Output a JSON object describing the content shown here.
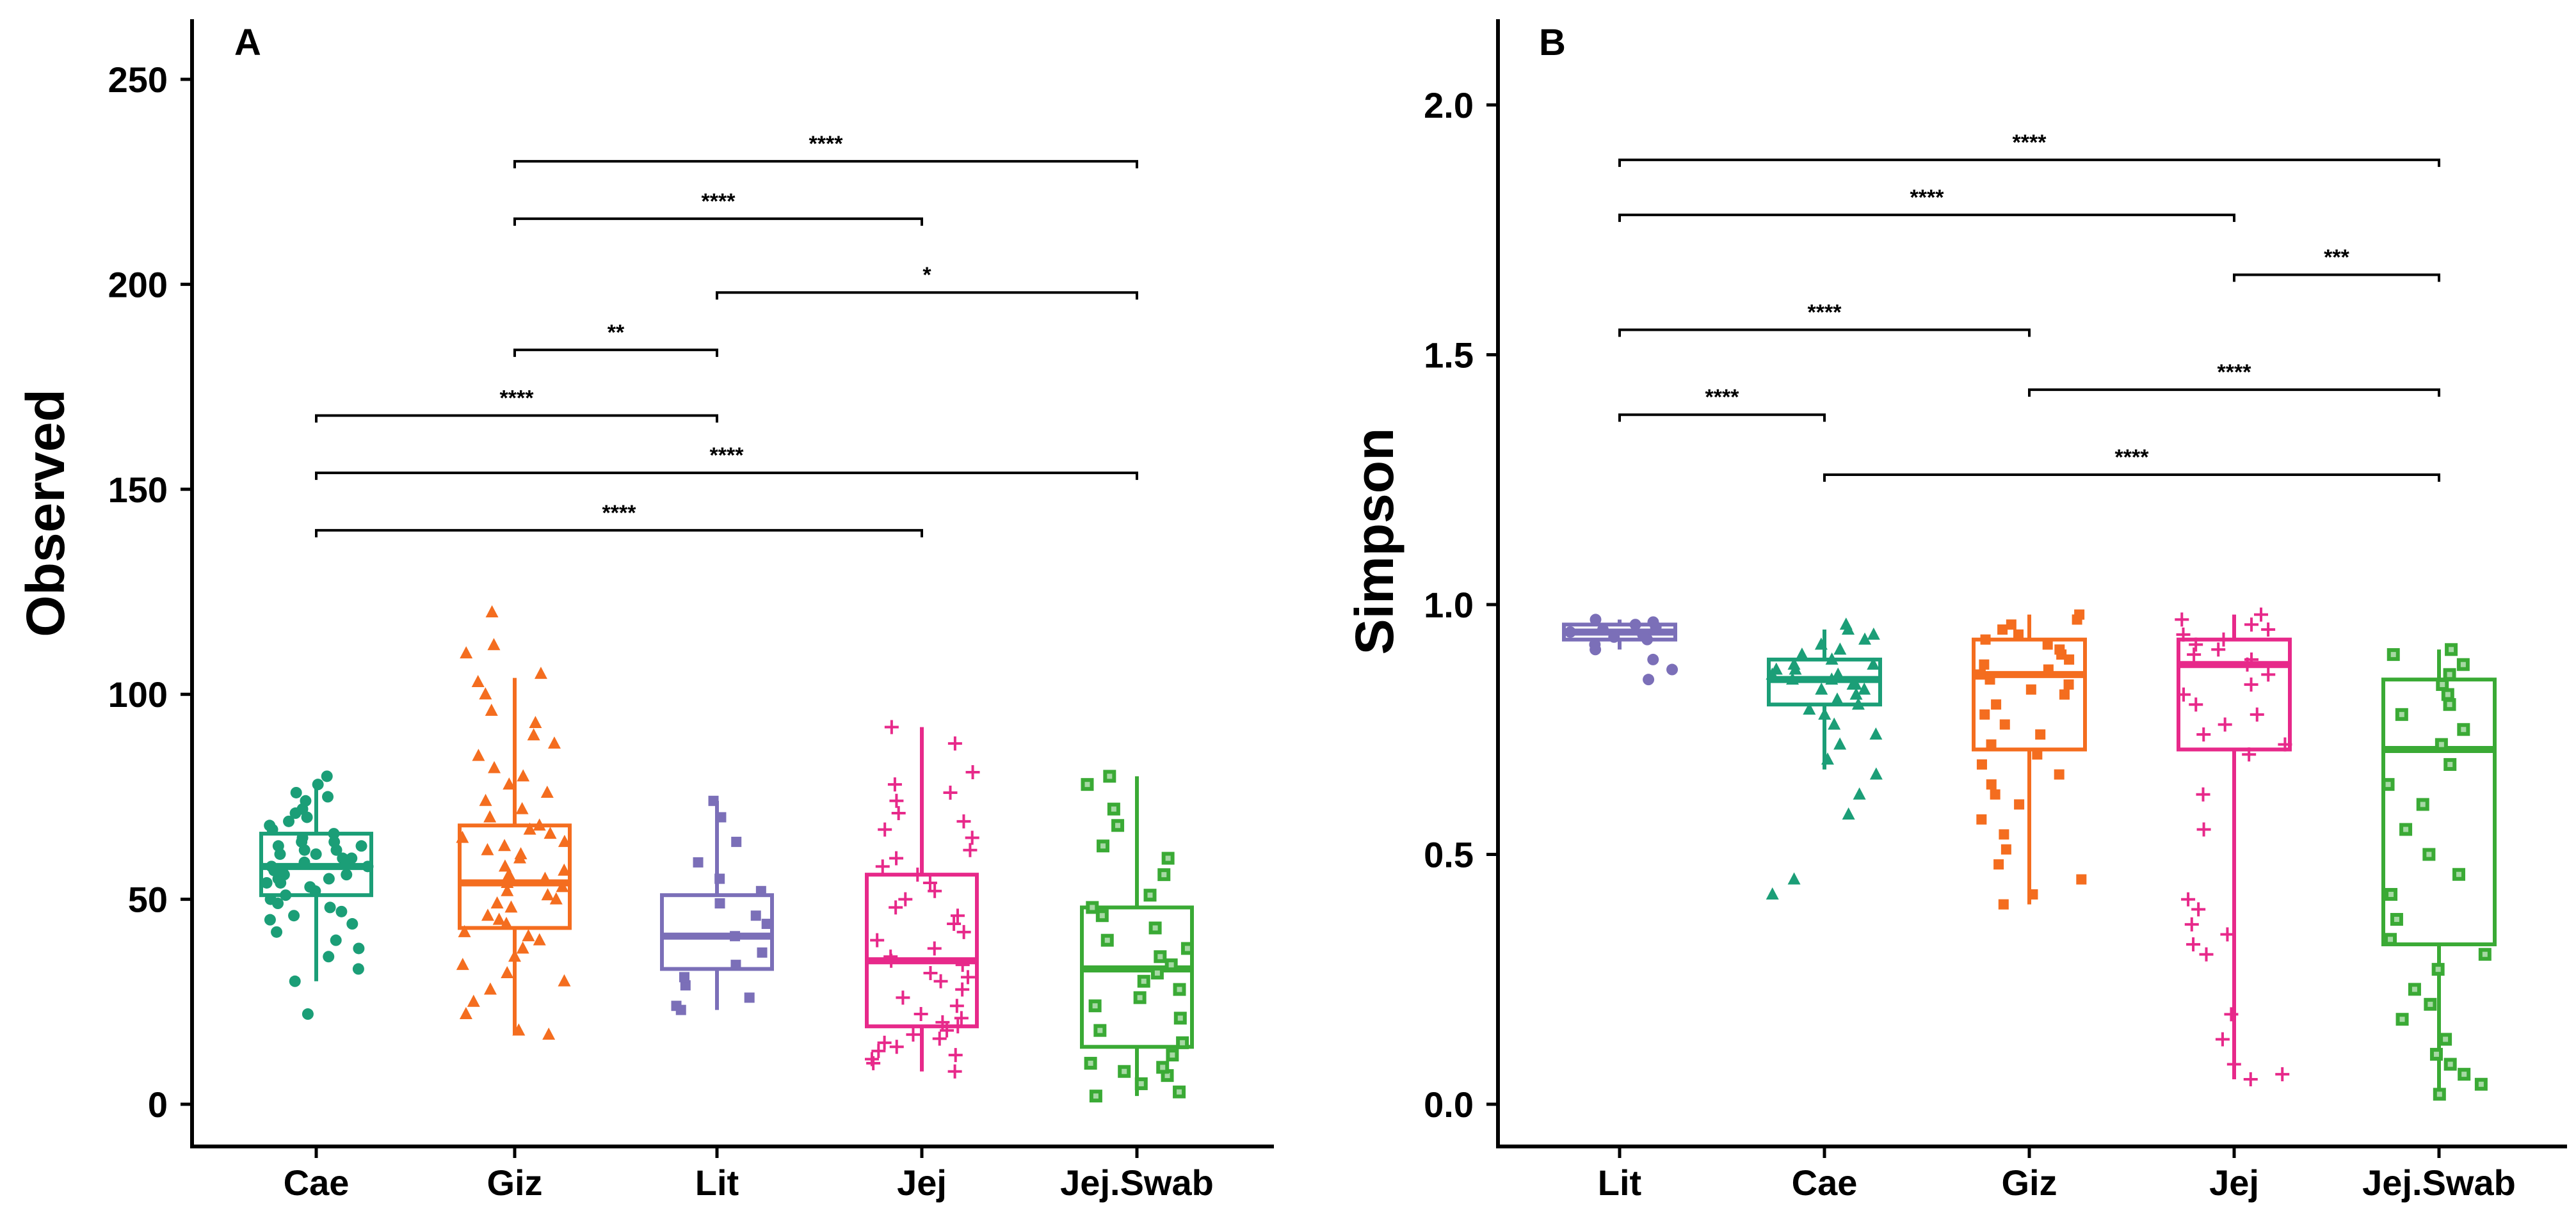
{
  "colors": {
    "Cae": "#1b9e77",
    "Giz": "#f46d1f",
    "Lit": "#7b6fb8",
    "Jej": "#e7298a",
    "Jej.Swab": "#3aaa35"
  },
  "chart_data": [
    {
      "type": "box",
      "panel": "A",
      "ylabel": "Observed",
      "xlabel": "",
      "ylim": [
        0,
        260
      ],
      "yticks": [
        0,
        50,
        100,
        150,
        200,
        250
      ],
      "categories": [
        "Cae",
        "Giz",
        "Lit",
        "Jej",
        "Jej.Swab"
      ],
      "boxes": [
        {
          "group": "Cae",
          "marker": "circle",
          "whisker_low": 30,
          "q1": 51,
          "median": 58,
          "q3": 66,
          "whisker_high": 79,
          "points": [
            22,
            30,
            33,
            36,
            38,
            40,
            42,
            44,
            45,
            46,
            47,
            48,
            49,
            50,
            51,
            52,
            53,
            54,
            54,
            55,
            55,
            56,
            56,
            57,
            57,
            58,
            58,
            59,
            59,
            60,
            60,
            61,
            61,
            62,
            62,
            63,
            63,
            64,
            64,
            65,
            66,
            67,
            68,
            69,
            70,
            71,
            72,
            74,
            75,
            76,
            78,
            80
          ]
        },
        {
          "group": "Giz",
          "marker": "triangle",
          "whisker_low": 17,
          "q1": 43,
          "median": 54,
          "q3": 68,
          "whisker_high": 104,
          "points": [
            17,
            18,
            22,
            25,
            28,
            30,
            32,
            34,
            36,
            38,
            40,
            41,
            42,
            44,
            45,
            46,
            48,
            49,
            50,
            51,
            52,
            53,
            54,
            55,
            56,
            57,
            58,
            60,
            61,
            62,
            63,
            64,
            65,
            66,
            67,
            68,
            70,
            72,
            74,
            76,
            78,
            80,
            82,
            85,
            88,
            90,
            93,
            96,
            100,
            103,
            105,
            110,
            112,
            120
          ]
        },
        {
          "group": "Lit",
          "marker": "square",
          "whisker_low": 23,
          "q1": 33,
          "median": 41,
          "q3": 51,
          "whisker_high": 74,
          "points": [
            23,
            24,
            26,
            29,
            31,
            34,
            37,
            41,
            44,
            46,
            49,
            52,
            55,
            59,
            64,
            70,
            74
          ]
        },
        {
          "group": "Jej",
          "marker": "plus",
          "whisker_low": 8,
          "q1": 19,
          "median": 35,
          "q3": 56,
          "whisker_high": 92,
          "points": [
            8,
            10,
            11,
            12,
            13,
            14,
            15,
            16,
            17,
            18,
            19,
            20,
            21,
            22,
            24,
            26,
            28,
            30,
            31,
            32,
            34,
            35,
            36,
            38,
            40,
            42,
            44,
            46,
            48,
            50,
            52,
            54,
            56,
            58,
            60,
            62,
            65,
            67,
            69,
            71,
            74,
            76,
            78,
            81,
            88,
            92
          ]
        },
        {
          "group": "Jej.Swab",
          "marker": "square-dot",
          "whisker_low": 2,
          "q1": 14,
          "median": 33,
          "q3": 48,
          "whisker_high": 80,
          "points": [
            2,
            3,
            5,
            7,
            8,
            9,
            10,
            12,
            15,
            18,
            21,
            24,
            26,
            28,
            30,
            32,
            34,
            36,
            38,
            40,
            43,
            46,
            48,
            51,
            56,
            60,
            63,
            68,
            72,
            78,
            80
          ]
        }
      ],
      "comparisons": [
        {
          "from": "Giz",
          "to": "Jej.Swab",
          "y": 230,
          "label": "****"
        },
        {
          "from": "Giz",
          "to": "Jej",
          "y": 216,
          "label": "****"
        },
        {
          "from": "Lit",
          "to": "Jej.Swab",
          "y": 198,
          "label": "*"
        },
        {
          "from": "Giz",
          "to": "Lit",
          "y": 184,
          "label": "**"
        },
        {
          "from": "Cae",
          "to": "Lit",
          "y": 168,
          "label": "****"
        },
        {
          "from": "Cae",
          "to": "Jej.Swab",
          "y": 154,
          "label": "****"
        },
        {
          "from": "Cae",
          "to": "Jej",
          "y": 140,
          "label": "****"
        }
      ]
    },
    {
      "type": "box",
      "panel": "B",
      "ylabel": "Simpson",
      "xlabel": "",
      "ylim": [
        -0.05,
        2.18
      ],
      "yticks": [
        0.0,
        0.5,
        1.0,
        1.5,
        2.0
      ],
      "ytick_labels": [
        "0.0",
        "0.5",
        "1.0",
        "1.5",
        "2.0"
      ],
      "categories": [
        "Lit",
        "Cae",
        "Giz",
        "Jej",
        "Jej.Swab"
      ],
      "boxes": [
        {
          "group": "Lit",
          "marker": "circle",
          "whisker_low": 0.91,
          "q1": 0.93,
          "median": 0.945,
          "q3": 0.96,
          "whisker_high": 0.97,
          "points": [
            0.85,
            0.87,
            0.89,
            0.91,
            0.92,
            0.93,
            0.935,
            0.94,
            0.945,
            0.95,
            0.955,
            0.96,
            0.965,
            0.97
          ]
        },
        {
          "group": "Cae",
          "marker": "triangle",
          "whisker_low": 0.67,
          "q1": 0.8,
          "median": 0.85,
          "q3": 0.89,
          "whisker_high": 0.95,
          "points": [
            0.42,
            0.45,
            0.58,
            0.62,
            0.66,
            0.69,
            0.72,
            0.74,
            0.76,
            0.78,
            0.79,
            0.8,
            0.81,
            0.82,
            0.83,
            0.83,
            0.84,
            0.84,
            0.85,
            0.85,
            0.86,
            0.86,
            0.87,
            0.87,
            0.88,
            0.88,
            0.89,
            0.9,
            0.91,
            0.92,
            0.93,
            0.94,
            0.95,
            0.96
          ]
        },
        {
          "group": "Giz",
          "marker": "square",
          "whisker_low": 0.4,
          "q1": 0.71,
          "median": 0.86,
          "q3": 0.93,
          "whisker_high": 0.98,
          "points": [
            0.4,
            0.42,
            0.45,
            0.48,
            0.51,
            0.54,
            0.57,
            0.6,
            0.62,
            0.64,
            0.66,
            0.68,
            0.7,
            0.72,
            0.74,
            0.76,
            0.78,
            0.8,
            0.82,
            0.83,
            0.84,
            0.85,
            0.86,
            0.87,
            0.88,
            0.89,
            0.9,
            0.91,
            0.92,
            0.93,
            0.94,
            0.95,
            0.96,
            0.97,
            0.98
          ]
        },
        {
          "group": "Jej",
          "marker": "plus",
          "whisker_low": 0.05,
          "q1": 0.71,
          "median": 0.88,
          "q3": 0.93,
          "whisker_high": 0.98,
          "points": [
            0.05,
            0.06,
            0.08,
            0.13,
            0.18,
            0.3,
            0.32,
            0.34,
            0.36,
            0.39,
            0.41,
            0.55,
            0.62,
            0.7,
            0.72,
            0.74,
            0.76,
            0.78,
            0.8,
            0.82,
            0.84,
            0.86,
            0.88,
            0.89,
            0.9,
            0.91,
            0.92,
            0.93,
            0.94,
            0.95,
            0.96,
            0.97,
            0.98
          ]
        },
        {
          "group": "Jej.Swab",
          "marker": "square-dot",
          "whisker_low": 0.02,
          "q1": 0.32,
          "median": 0.71,
          "q3": 0.85,
          "whisker_high": 0.91,
          "points": [
            0.02,
            0.04,
            0.06,
            0.08,
            0.1,
            0.13,
            0.17,
            0.2,
            0.23,
            0.27,
            0.3,
            0.33,
            0.37,
            0.42,
            0.46,
            0.5,
            0.55,
            0.6,
            0.64,
            0.68,
            0.72,
            0.75,
            0.78,
            0.8,
            0.82,
            0.84,
            0.86,
            0.88,
            0.9,
            0.91
          ]
        }
      ],
      "comparisons": [
        {
          "from": "Lit",
          "to": "Jej.Swab",
          "y": 1.89,
          "label": "****"
        },
        {
          "from": "Lit",
          "to": "Jej",
          "y": 1.78,
          "label": "****"
        },
        {
          "from": "Jej",
          "to": "Jej.Swab",
          "y": 1.66,
          "label": "***"
        },
        {
          "from": "Lit",
          "to": "Giz",
          "y": 1.55,
          "label": "****"
        },
        {
          "from": "Giz",
          "to": "Jej.Swab",
          "y": 1.43,
          "label": "****"
        },
        {
          "from": "Lit",
          "to": "Cae",
          "y": 1.38,
          "label": "****"
        },
        {
          "from": "Cae",
          "to": "Jej.Swab",
          "y": 1.26,
          "label": "****"
        }
      ]
    }
  ]
}
